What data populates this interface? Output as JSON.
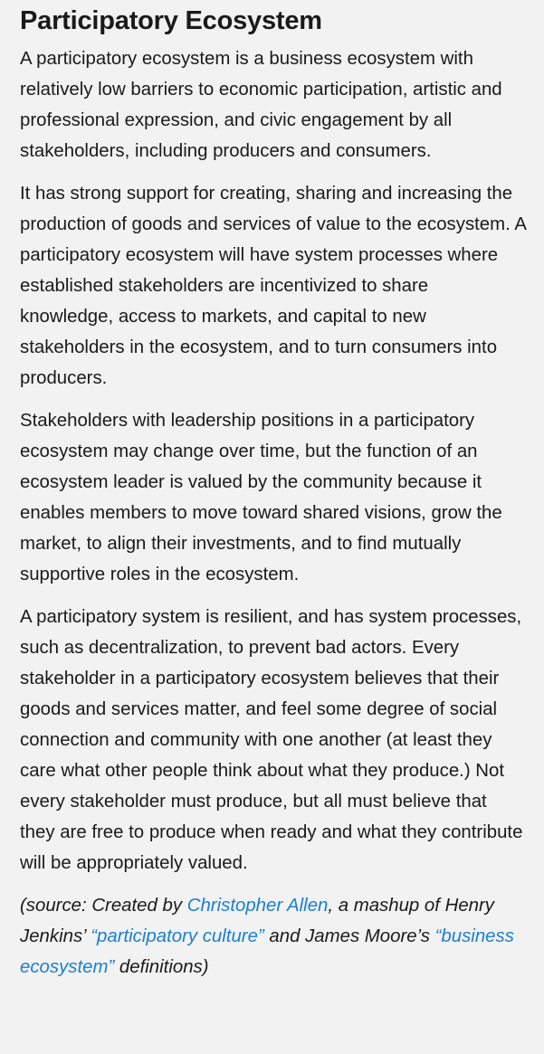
{
  "article": {
    "title": "Participatory Ecosystem",
    "paragraphs": [
      "A participatory ecosystem is a business ecosystem with relatively low barriers to economic participation, artistic and professional expression, and civic engagement by all stakeholders, including producers and consumers.",
      "It has strong support for creating, sharing and increasing the production of goods and services of value to the ecosystem. A participatory ecosystem will have system processes where established stakeholders are incentivized to share knowledge, access to markets, and capital to new stakeholders in the ecosystem, and to turn consumers into producers.",
      "Stakeholders with leadership positions in a participatory ecosystem may change over time, but the function of an ecosystem leader is valued by the community because it enables members to move toward shared visions, grow the market, to align their investments, and to find mutually supportive roles in the ecosystem.",
      "A participatory system is resilient, and has system processes, such as decentralization, to prevent bad actors. Every stakeholder in a participatory ecosystem believes that their goods and services matter, and feel some degree of social connection and community with one another (at least they care what other people think about what they produce.) Not every stakeholder must produce, but all must believe that they are free to produce when ready and what they contribute will be appropriately valued."
    ],
    "source": {
      "prefix": "(source: Created by ",
      "author_link": "Christopher Allen",
      "mid1": ", a mashup of Henry Jenkins’ ",
      "link1": "“participatory culture”",
      "mid2": " and James Moore’s ",
      "link2": "“business ecosystem”",
      "suffix": " definitions)"
    },
    "colors": {
      "background": "#f2f2f2",
      "text": "#1a1a1a",
      "link": "#1a7fd1"
    }
  }
}
